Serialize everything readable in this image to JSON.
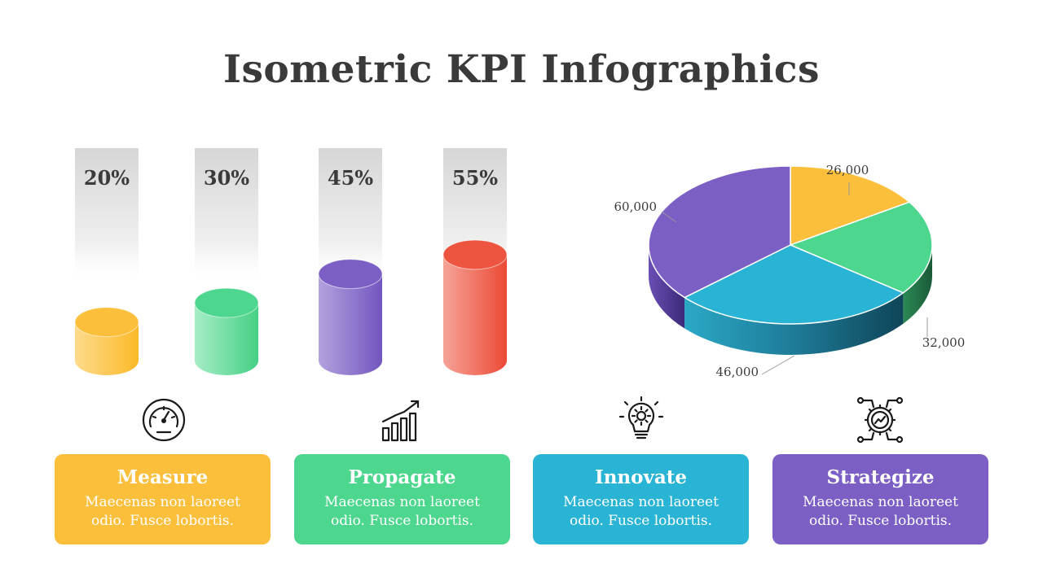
{
  "title": "Isometric KPI Infographics",
  "colors": {
    "yellow": "#FBBF3C",
    "green": "#4DD68D",
    "blue": "#29B3D4",
    "purple": "#7B5FC5",
    "red": "#EE5541",
    "text": "#3a3a3a"
  },
  "chart_data": [
    {
      "type": "bar",
      "style": "isometric-cylinder",
      "categories": [
        "Measure",
        "Propagate",
        "Innovate",
        "Strategize"
      ],
      "values": [
        20,
        30,
        45,
        55
      ],
      "labels": [
        "20%",
        "30%",
        "45%",
        "55%"
      ],
      "colors": [
        "#FBBF3C",
        "#4DD68D",
        "#7B5FC5",
        "#EE5541"
      ]
    },
    {
      "type": "pie",
      "style": "3d",
      "values": [
        26000,
        32000,
        46000,
        60000
      ],
      "labels": [
        "26,000",
        "32,000",
        "46,000",
        "60,000"
      ],
      "colors": [
        "#FBBF3C",
        "#4DD68D",
        "#29B3D4",
        "#7B5FC5"
      ]
    }
  ],
  "cards": [
    {
      "title": "Measure",
      "text": "Maecenas non laoreet odio. Fusce lobortis.",
      "color": "#FBBF3C",
      "icon": "speedometer-icon"
    },
    {
      "title": "Propagate",
      "text": "Maecenas non laoreet odio. Fusce lobortis.",
      "color": "#4DD68D",
      "icon": "growth-chart-icon"
    },
    {
      "title": "Innovate",
      "text": "Maecenas non laoreet odio. Fusce lobortis.",
      "color": "#29B3D4",
      "icon": "lightbulb-gear-icon"
    },
    {
      "title": "Strategize",
      "text": "Maecenas non laoreet odio. Fusce lobortis.",
      "color": "#7B5FC5",
      "icon": "gear-network-icon"
    }
  ]
}
